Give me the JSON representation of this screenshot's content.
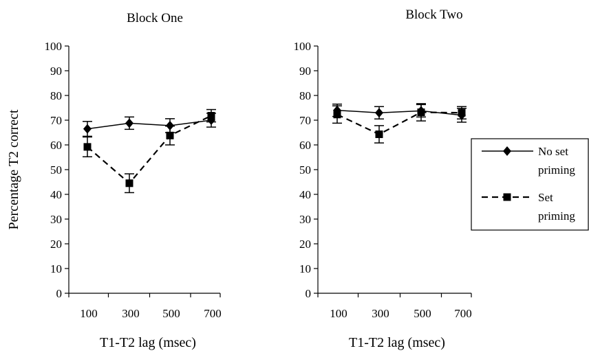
{
  "chart_data": [
    {
      "type": "line",
      "title": "Block One",
      "xlabel": "T1-T2 lag (msec)",
      "ylabel": "Percentage T2 correct",
      "categories": [
        "100",
        "300",
        "500",
        "700"
      ],
      "ylim": [
        0,
        100
      ],
      "yticks": [
        "0",
        "10",
        "20",
        "30",
        "40",
        "50",
        "60",
        "70",
        "80",
        "90",
        "100"
      ],
      "grid": false,
      "series": [
        {
          "name": "No set priming",
          "marker": "diamond",
          "line": "solid",
          "values": [
            66.5,
            68.8,
            67.8,
            70.0
          ],
          "error": [
            3.0,
            2.5,
            2.8,
            2.8
          ]
        },
        {
          "name": "Set priming",
          "marker": "square",
          "line": "dashed",
          "values": [
            59.2,
            44.5,
            63.8,
            71.8
          ],
          "error": [
            4.0,
            3.8,
            3.8,
            2.5
          ]
        }
      ]
    },
    {
      "type": "line",
      "title": "Block Two",
      "xlabel": "T1-T2 lag (msec)",
      "ylabel": "",
      "categories": [
        "100",
        "300",
        "500",
        "700"
      ],
      "ylim": [
        0,
        100
      ],
      "yticks": [
        "0",
        "10",
        "20",
        "30",
        "40",
        "50",
        "60",
        "70",
        "80",
        "90",
        "100"
      ],
      "grid": false,
      "series": [
        {
          "name": "No set priming",
          "marker": "diamond",
          "line": "solid",
          "values": [
            74.0,
            73.0,
            73.8,
            72.0
          ],
          "error": [
            2.5,
            2.5,
            2.5,
            2.8
          ]
        },
        {
          "name": "Set priming",
          "marker": "square",
          "line": "dashed",
          "values": [
            72.3,
            64.3,
            73.2,
            73.0
          ],
          "error": [
            3.5,
            3.5,
            3.5,
            2.5
          ]
        }
      ]
    }
  ],
  "legend": {
    "placement": "right",
    "items": [
      {
        "lines": [
          "No set",
          "priming"
        ],
        "marker": "diamond",
        "line": "solid"
      },
      {
        "lines": [
          "Set",
          "priming"
        ],
        "marker": "square",
        "line": "dashed"
      }
    ]
  }
}
